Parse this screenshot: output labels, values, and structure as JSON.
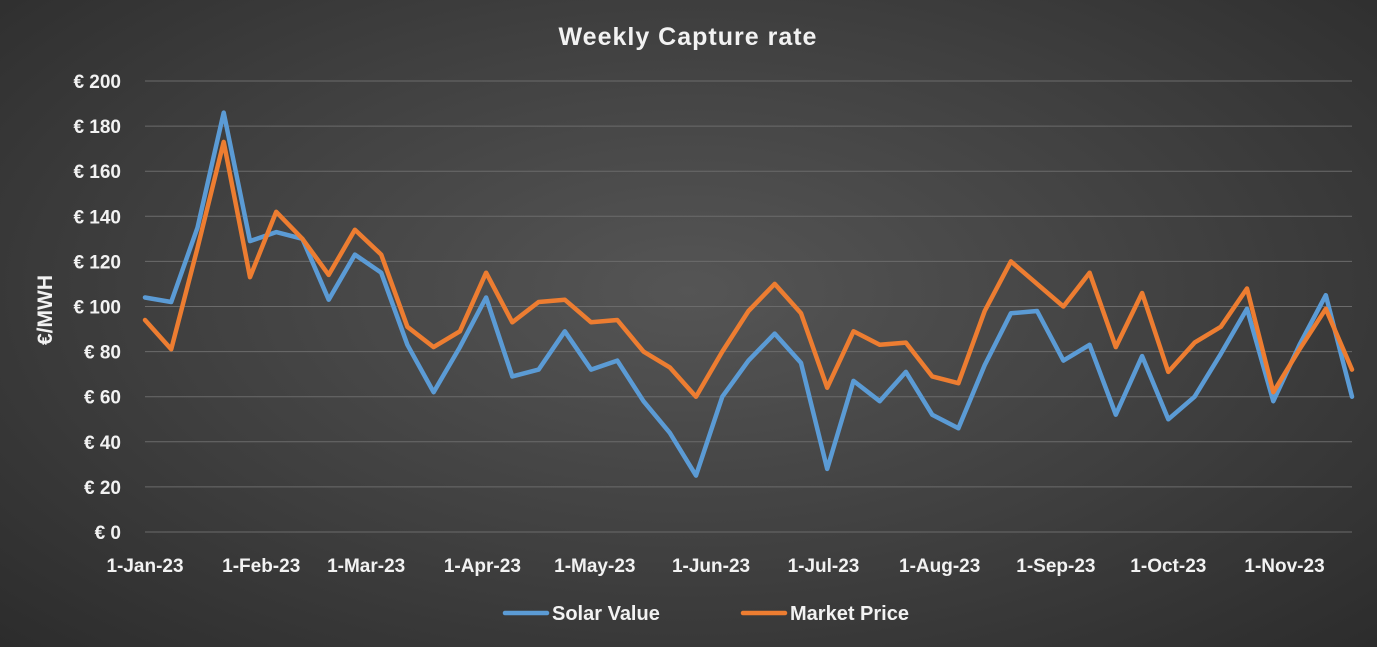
{
  "chart_data": {
    "type": "line",
    "title": "Weekly Capture rate",
    "ylabel": "€/MWH",
    "xlabel": "",
    "ylim": [
      0,
      200
    ],
    "yticks": [
      0,
      20,
      40,
      60,
      80,
      100,
      120,
      140,
      160,
      180,
      200
    ],
    "ytick_labels": [
      "€ 0",
      "€ 20",
      "€ 40",
      "€ 60",
      "€ 80",
      "€ 100",
      "€ 120",
      "€ 140",
      "€ 160",
      "€ 180",
      "€ 200"
    ],
    "xtick_labels": [
      "1-Jan-23",
      "1-Feb-23",
      "1-Mar-23",
      "1-Apr-23",
      "1-May-23",
      "1-Jun-23",
      "1-Jul-23",
      "1-Aug-23",
      "1-Sep-23",
      "1-Oct-23",
      "1-Nov-23"
    ],
    "xtick_dates": [
      "2023-01-01",
      "2023-02-01",
      "2023-03-01",
      "2023-04-01",
      "2023-05-01",
      "2023-06-01",
      "2023-07-01",
      "2023-08-01",
      "2023-09-01",
      "2023-10-01",
      "2023-11-01"
    ],
    "x": [
      "2023-01-01",
      "2023-01-08",
      "2023-01-15",
      "2023-01-22",
      "2023-01-29",
      "2023-02-05",
      "2023-02-12",
      "2023-02-19",
      "2023-02-26",
      "2023-03-05",
      "2023-03-12",
      "2023-03-19",
      "2023-03-26",
      "2023-04-02",
      "2023-04-09",
      "2023-04-16",
      "2023-04-23",
      "2023-04-30",
      "2023-05-07",
      "2023-05-14",
      "2023-05-21",
      "2023-05-28",
      "2023-06-04",
      "2023-06-11",
      "2023-06-18",
      "2023-06-25",
      "2023-07-02",
      "2023-07-09",
      "2023-07-16",
      "2023-07-23",
      "2023-07-30",
      "2023-08-06",
      "2023-08-13",
      "2023-08-20",
      "2023-08-27",
      "2023-09-03",
      "2023-09-10",
      "2023-09-17",
      "2023-09-24",
      "2023-10-01",
      "2023-10-08",
      "2023-10-15",
      "2023-10-22",
      "2023-10-29",
      "2023-11-05",
      "2023-11-12",
      "2023-11-19"
    ],
    "series": [
      {
        "name": "Solar Value",
        "color": "#5b9bd5",
        "values": [
          104,
          102,
          135,
          186,
          129,
          133,
          130,
          103,
          123,
          115,
          83,
          62,
          82,
          104,
          69,
          72,
          89,
          72,
          76,
          58,
          44,
          25,
          60,
          76,
          88,
          75,
          28,
          67,
          58,
          71,
          52,
          46,
          74,
          97,
          98,
          76,
          83,
          52,
          78,
          50,
          60,
          79,
          99,
          58,
          83,
          105,
          60
        ]
      },
      {
        "name": "Market Price",
        "color": "#ed7d31",
        "values": [
          94,
          81,
          126,
          173,
          113,
          142,
          130,
          114,
          134,
          123,
          91,
          82,
          89,
          115,
          93,
          102,
          103,
          93,
          94,
          80,
          73,
          60,
          80,
          98,
          110,
          97,
          64,
          89,
          83,
          84,
          69,
          66,
          98,
          120,
          110,
          100,
          115,
          82,
          106,
          71,
          84,
          91,
          108,
          62,
          81,
          99,
          72
        ]
      }
    ],
    "grid": true,
    "legend_position": "bottom"
  }
}
